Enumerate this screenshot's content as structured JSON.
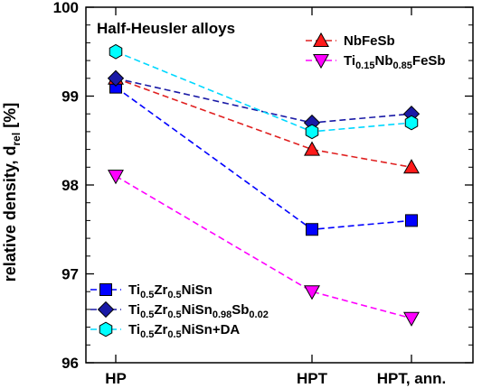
{
  "chart_data": {
    "type": "line",
    "annotation": "Half-Heusler alloys",
    "ylabel": "relative density, d",
    "ylabel_sub": "rel",
    "ylabel_unit": " [%]",
    "categories": [
      "HP",
      "HPT",
      "HPT, ann."
    ],
    "ylim": [
      96,
      100
    ],
    "yticks": [
      "96",
      "97",
      "98",
      "99",
      "100"
    ],
    "grid": false,
    "legend_placement": "top-right and bottom-left",
    "series": [
      {
        "id": "tizr",
        "name_parts": [
          {
            "t": "Ti"
          },
          {
            "t": "0.5",
            "s": 1
          },
          {
            "t": "Zr"
          },
          {
            "t": "0.5",
            "s": 1
          },
          {
            "t": "NiSn"
          }
        ],
        "values": [
          99.1,
          97.5,
          97.6
        ],
        "color": "#0000ff",
        "line_color": "#0000ff",
        "marker": "square"
      },
      {
        "id": "tizrsb",
        "name_parts": [
          {
            "t": "Ti"
          },
          {
            "t": "0.5",
            "s": 1
          },
          {
            "t": "Zr"
          },
          {
            "t": "0.5",
            "s": 1
          },
          {
            "t": "NiSn"
          },
          {
            "t": "0.98",
            "s": 1
          },
          {
            "t": "Sb"
          },
          {
            "t": "0.02",
            "s": 1
          }
        ],
        "values": [
          99.2,
          98.7,
          98.8
        ],
        "color": "#1a1aa6",
        "line_color": "#1a1aa6",
        "marker": "diamond"
      },
      {
        "id": "tizrda",
        "name_parts": [
          {
            "t": "Ti"
          },
          {
            "t": "0.5",
            "s": 1
          },
          {
            "t": "Zr"
          },
          {
            "t": "0.5",
            "s": 1
          },
          {
            "t": "NiSn+DA"
          }
        ],
        "values": [
          99.5,
          98.6,
          98.7
        ],
        "color": "#00ffff",
        "line_color": "#00d8ff",
        "marker": "hexagon"
      },
      {
        "id": "nbfesb",
        "name_parts": [
          {
            "t": "NbFeSb"
          }
        ],
        "values": [
          99.2,
          98.4,
          98.2
        ],
        "color": "#ff1a1a",
        "line_color": "#e02020",
        "marker": "triangle-up"
      },
      {
        "id": "tinbfesb",
        "name_parts": [
          {
            "t": "Ti"
          },
          {
            "t": "0.15",
            "s": 1
          },
          {
            "t": "Nb"
          },
          {
            "t": "0.85",
            "s": 1
          },
          {
            "t": "FeSb"
          }
        ],
        "values": [
          98.1,
          96.8,
          96.5
        ],
        "color": "#ff00ff",
        "line_color": "#ff00ff",
        "marker": "triangle-down"
      }
    ],
    "legend_top": [
      "nbfesb",
      "tinbfesb"
    ],
    "legend_bottom": [
      "tizr",
      "tizrsb",
      "tizrda"
    ]
  }
}
